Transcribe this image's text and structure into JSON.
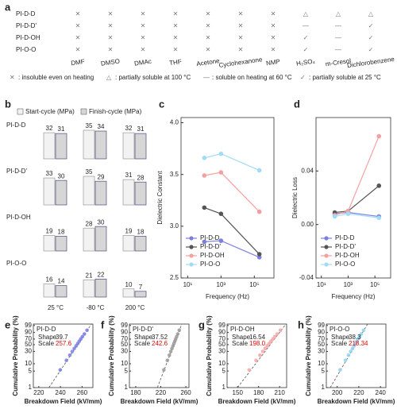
{
  "solubility": {
    "label": "a",
    "columns": [
      "DMF",
      "DMSO",
      "DMAc",
      "THF",
      "Acetone",
      "Cyclohexanone",
      "NMP",
      "H₂SO₄",
      "m-Cresol",
      "Dichlorobenzene"
    ],
    "rows": [
      {
        "name": "PI-D-D",
        "cells": [
          "✕",
          "✕",
          "✕",
          "✕",
          "✕",
          "✕",
          "✕",
          "△",
          "△",
          "△"
        ]
      },
      {
        "name": "PI-D-D'",
        "cells": [
          "✕",
          "✕",
          "✕",
          "✕",
          "✕",
          "✕",
          "✕",
          "—",
          "—",
          "✓"
        ]
      },
      {
        "name": "PI-D-OH",
        "cells": [
          "✕",
          "✕",
          "✕",
          "✕",
          "✕",
          "✕",
          "✕",
          "✓",
          "—",
          "✓"
        ]
      },
      {
        "name": "PI-O-O",
        "cells": [
          "✕",
          "✕",
          "✕",
          "✕",
          "✕",
          "✕",
          "✕",
          "✓",
          "—",
          "✓"
        ]
      }
    ],
    "legend": [
      {
        "symbol": "✕",
        "text": ": insoluble even on heating"
      },
      {
        "symbol": "△",
        "text": ": partially soluble at 100 °C"
      },
      {
        "symbol": "—",
        "text": ": soluble on heating at 60 °C"
      },
      {
        "symbol": "✓",
        "text": ": partially soluble at 25 °C"
      }
    ]
  },
  "chart_data": [
    {
      "type": "bar",
      "label": "b",
      "series_names": [
        "Start-cycle (MPa)",
        "Finish-cycle (MPa)"
      ],
      "colors": [
        "#f2f2f2",
        "#d6d6d6"
      ],
      "categories": [
        "25 °C",
        "-80 °C",
        "200 °C"
      ],
      "groups": [
        {
          "name": "PI-D-D",
          "values": [
            [
              32,
              31
            ],
            [
              35,
              34
            ],
            [
              32,
              31
            ]
          ]
        },
        {
          "name": "PI-D-D'",
          "values": [
            [
              33,
              30
            ],
            [
              35,
              29
            ],
            [
              31,
              28
            ]
          ]
        },
        {
          "name": "PI-D-OH",
          "values": [
            [
              19,
              18
            ],
            [
              28,
              30
            ],
            [
              19,
              18
            ]
          ]
        },
        {
          "name": "PI-O-O",
          "values": [
            [
              16,
              14
            ],
            [
              21,
              22
            ],
            [
              10,
              7
            ]
          ]
        }
      ]
    },
    {
      "type": "line",
      "label": "c",
      "xlabel": "Frequency (Hz)",
      "ylabel": "Dielectric Constant",
      "xscale": "log",
      "x": [
        100,
        1000,
        200000
      ],
      "xlim": [
        4,
        1500000
      ],
      "xticks": [
        {
          "value": 10,
          "label": "10¹"
        },
        {
          "value": 1000,
          "label": "10³"
        },
        {
          "value": 100000,
          "label": "10⁵"
        }
      ],
      "ylim": [
        2.5,
        4.05
      ],
      "yticks": [
        2.5,
        {
          "value": 3,
          "label": "3.0"
        },
        3.5,
        {
          "value": 4,
          "label": "4.0"
        }
      ],
      "legend": "lower left",
      "series": [
        {
          "name": "PI-D-D",
          "color": "#7b7fe0",
          "values": [
            2.85,
            2.86,
            2.7
          ]
        },
        {
          "name": "PI-D-D'",
          "color": "#555555",
          "values": [
            3.18,
            3.12,
            2.73
          ]
        },
        {
          "name": "PI-D-OH",
          "color": "#f5a0a0",
          "values": [
            3.49,
            3.52,
            3.14
          ]
        },
        {
          "name": "PI-O-O",
          "color": "#9fdcf7",
          "values": [
            3.66,
            3.7,
            3.54
          ]
        }
      ]
    },
    {
      "type": "line",
      "label": "d",
      "xlabel": "Frequency (Hz)",
      "ylabel": "Dielectric Loss",
      "xscale": "log",
      "x": [
        100,
        1000,
        200000
      ],
      "xlim": [
        4,
        1500000
      ],
      "xticks": [
        {
          "value": 10,
          "label": "10¹"
        },
        {
          "value": 1000,
          "label": "10³"
        },
        {
          "value": 100000,
          "label": "10⁵"
        }
      ],
      "ylim": [
        -0.04,
        0.08
      ],
      "yticks": [
        -0.04,
        {
          "value": 0,
          "label": "0.00"
        },
        0.04
      ],
      "legend": "lower left",
      "series": [
        {
          "name": "PI-D-D",
          "color": "#7b7fe0",
          "values": [
            0.008,
            0.009,
            0.006
          ]
        },
        {
          "name": "PI-D-D'",
          "color": "#555555",
          "values": [
            0.009,
            0.01,
            0.029
          ]
        },
        {
          "name": "PI-D-OH",
          "color": "#f5a0a0",
          "values": [
            0.007,
            0.01,
            0.066
          ]
        },
        {
          "name": "PI-O-O",
          "color": "#9fdcf7",
          "values": [
            0.006,
            0.008,
            0.005
          ]
        }
      ]
    },
    {
      "type": "scatter",
      "label": "e",
      "title": "PI-D-D",
      "probability_scale": "weibull",
      "xlabel": "Breakdown Field (kV/mm)",
      "ylabel": "Cumulative Probability (%)",
      "shape_label": "Shape",
      "scale_label": "Scale",
      "shape": 39.7,
      "scale": 257.6,
      "color": "#7b7fe0",
      "x": [
        239.8,
        245.5,
        248.7,
        250.9,
        252.8,
        254.5,
        256.0,
        257.4,
        258.8,
        260.3,
        262.1,
        264.6
      ],
      "values": [
        5.6,
        13.7,
        21.8,
        29.8,
        37.9,
        46,
        54,
        62.1,
        70.2,
        78.2,
        86.3,
        94.4
      ],
      "xlim": [
        215,
        270
      ],
      "xticks": [
        220,
        240,
        260
      ],
      "ylim": [
        1,
        99.5
      ],
      "yticks": [
        1,
        5,
        10,
        30,
        50,
        70,
        90,
        99
      ]
    },
    {
      "type": "scatter",
      "label": "f",
      "title": "PI-D-D'",
      "probability_scale": "weibull",
      "xlabel": "Breakdown Field (kV/mm)",
      "ylabel": "Cumulative Probability (%)",
      "shape_label": "Shape",
      "scale_label": "Scale",
      "shape": 37.52,
      "scale": 242.6,
      "color": "#9a9a9a",
      "x": [
        224.9,
        230.5,
        233.7,
        236.0,
        237.9,
        239.5,
        241.0,
        242.4,
        243.8,
        245.3,
        247.1,
        249.5
      ],
      "values": [
        5.6,
        13.7,
        21.8,
        29.8,
        37.9,
        46,
        54,
        62.1,
        70.2,
        78.2,
        86.3,
        94.4
      ],
      "xlim": [
        170,
        265
      ],
      "xticks": [
        180,
        220,
        260
      ],
      "ylim": [
        1,
        99.5
      ],
      "yticks": [
        1,
        5,
        10,
        30,
        50,
        70,
        90,
        99
      ]
    },
    {
      "type": "scatter",
      "label": "g",
      "title": "PI-D-OH",
      "probability_scale": "weibull",
      "xlabel": "Breakdown Field (kV/mm)",
      "ylabel": "Cumulative Probability (%)",
      "shape_label": "Shape",
      "scale_label": "Scale",
      "shape": 16.54,
      "scale": {
        "value": 198,
        "label": "198.0"
      },
      "color": "#f4a6a6",
      "x": [
        166.6,
        176.3,
        181.9,
        185.9,
        189.3,
        192.3,
        195.0,
        197.6,
        200.3,
        203.0,
        206.4,
        211.1
      ],
      "values": [
        5.6,
        13.7,
        21.8,
        29.8,
        37.9,
        46,
        54,
        62.1,
        70.2,
        78.2,
        86.3,
        94.4
      ],
      "xlim": [
        135,
        220
      ],
      "xticks": [
        150,
        180,
        210
      ],
      "ylim": [
        1,
        99.5
      ],
      "yticks": [
        1,
        5,
        10,
        30,
        50,
        70,
        90,
        99
      ]
    },
    {
      "type": "scatter",
      "label": "h",
      "title": "PI-O-O",
      "probability_scale": "weibull",
      "xlabel": "Breakdown Field (kV/mm)",
      "ylabel": "Cumulative Probability (%)",
      "shape_label": "Shape",
      "scale_label": "Scale",
      "shape": 38.3,
      "scale": 218.34,
      "color": "#8fd3f0",
      "x": [
        202.7,
        207.7,
        210.5,
        212.5,
        214.2,
        215.6,
        216.9,
        218.2,
        219.4,
        220.8,
        222.3,
        224.4
      ],
      "values": [
        5.6,
        13.7,
        21.8,
        29.8,
        37.9,
        46,
        54,
        62.1,
        70.2,
        78.2,
        86.3,
        94.4
      ],
      "xlim": [
        190,
        245
      ],
      "xticks": [
        200,
        220,
        240
      ],
      "ylim": [
        1,
        99.5
      ],
      "yticks": [
        1,
        5,
        10,
        30,
        50,
        70,
        90,
        99
      ]
    }
  ]
}
